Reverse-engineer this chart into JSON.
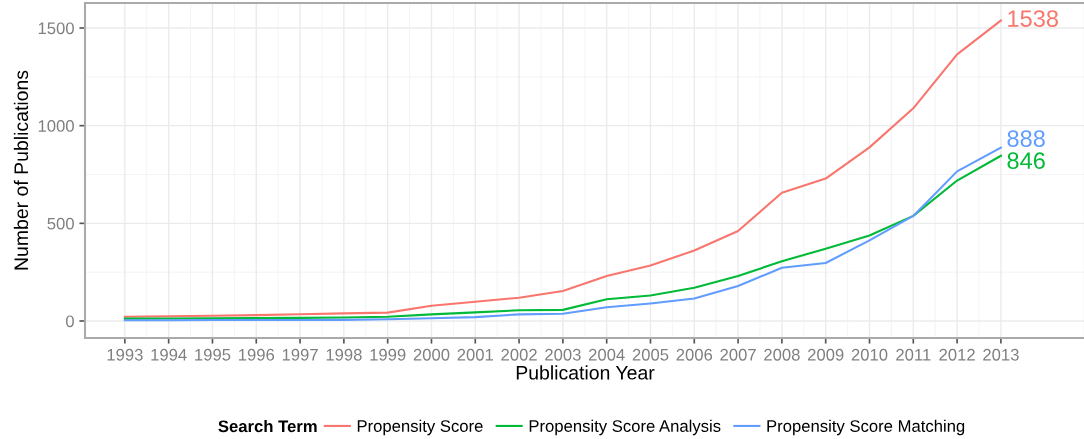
{
  "chart_data": {
    "type": "line",
    "xlabel": "Publication Year",
    "ylabel": "Number of Publications",
    "legend_title": "Search Term",
    "x": [
      1993,
      1994,
      1995,
      1996,
      1997,
      1998,
      1999,
      2000,
      2001,
      2002,
      2003,
      2004,
      2005,
      2006,
      2007,
      2008,
      2009,
      2010,
      2011,
      2012,
      2013
    ],
    "series": [
      {
        "name": "Propensity Score",
        "color": "#f8766d",
        "values": [
          22,
          24,
          27,
          30,
          35,
          39,
          43,
          78,
          99,
          119,
          154,
          230,
          284,
          361,
          461,
          657,
          729,
          889,
          1089,
          1365,
          1538
        ],
        "value_labels": [
          null,
          null,
          null,
          null,
          null,
          null,
          null,
          null,
          null,
          null,
          null,
          null,
          null,
          null,
          null,
          null,
          null,
          null,
          null,
          null,
          "1538"
        ]
      },
      {
        "name": "Propensity Score Analysis",
        "color": "#00ba38",
        "values": [
          12,
          13,
          14,
          15,
          16,
          18,
          22,
          34,
          44,
          55,
          57,
          111,
          131,
          170,
          230,
          306,
          370,
          438,
          538,
          719,
          846
        ],
        "value_labels": [
          null,
          null,
          null,
          null,
          null,
          null,
          null,
          null,
          null,
          null,
          null,
          null,
          null,
          null,
          null,
          null,
          null,
          null,
          null,
          null,
          "846"
        ]
      },
      {
        "name": "Propensity Score Matching",
        "color": "#619cff",
        "values": [
          4,
          4,
          5,
          5,
          5,
          6,
          9,
          14,
          20,
          34,
          37,
          70,
          90,
          115,
          179,
          273,
          297,
          413,
          538,
          766,
          888
        ],
        "value_labels": [
          null,
          null,
          null,
          null,
          null,
          null,
          null,
          null,
          null,
          null,
          null,
          null,
          null,
          null,
          null,
          null,
          null,
          null,
          null,
          null,
          "888"
        ]
      }
    ],
    "xlim": [
      1992.09,
      2014.92
    ],
    "xticks": [
      1993,
      1994,
      1995,
      1996,
      1997,
      1998,
      1999,
      2000,
      2001,
      2002,
      2003,
      2004,
      2005,
      2006,
      2007,
      2008,
      2009,
      2010,
      2011,
      2012,
      2013
    ],
    "ylim": [
      -87,
      1628
    ],
    "yticks": [
      0,
      500,
      1000,
      1500
    ],
    "grid": true,
    "legend": "bottom",
    "marker": "none",
    "line_style": "solid"
  }
}
